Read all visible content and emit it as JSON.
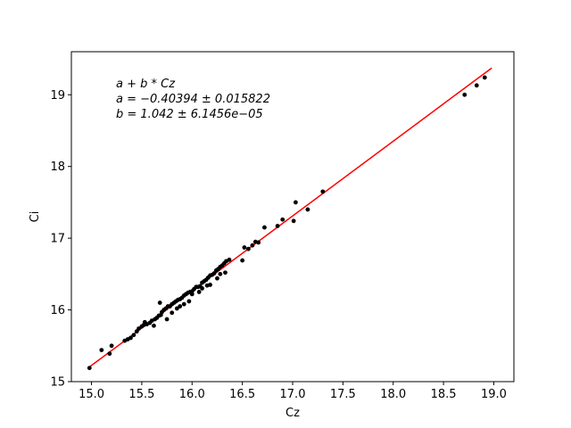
{
  "chart_data": {
    "type": "scatter",
    "xlabel": "Cz",
    "ylabel": "Ci",
    "title": "",
    "xlim": [
      14.8,
      19.2
    ],
    "ylim": [
      15.0,
      19.6
    ],
    "xticks": [
      15.0,
      15.5,
      16.0,
      16.5,
      17.0,
      17.5,
      18.0,
      18.5,
      19.0
    ],
    "xtick_labels": [
      "15.0",
      "15.5",
      "16.0",
      "16.5",
      "17.0",
      "17.5",
      "18.0",
      "18.5",
      "19.0"
    ],
    "yticks": [
      15,
      16,
      17,
      18,
      19
    ],
    "ytick_labels": [
      "15",
      "16",
      "17",
      "18",
      "19"
    ],
    "grid": false,
    "annotation": {
      "line1": "a + b * Cz",
      "line2": "a = −0.40394 ± 0.015822",
      "line3": "b = 1.042 ± 6.1456e−05"
    },
    "fit": {
      "a": -0.40394,
      "b": 1.042,
      "x_range": [
        14.98,
        18.98
      ],
      "color": "#ff0000"
    },
    "points_color": "#000000",
    "series": [
      {
        "x": [
          14.98,
          15.1,
          15.18,
          15.2,
          15.33,
          15.36,
          15.39,
          15.42,
          15.45,
          15.47,
          15.5,
          15.52,
          15.55,
          15.58,
          15.6,
          15.63,
          15.65,
          15.67,
          15.69,
          15.7,
          15.72,
          15.74,
          15.76,
          15.78,
          15.8,
          15.82,
          15.84,
          15.86,
          15.88,
          15.9,
          15.92,
          15.94,
          15.96,
          15.98,
          16.0,
          16.02,
          16.04,
          16.06,
          16.08,
          16.1,
          16.12,
          16.14,
          16.16,
          16.18,
          16.2,
          16.22,
          16.24,
          16.26,
          16.28,
          16.3,
          16.32,
          16.34,
          16.37,
          16.5,
          16.52,
          16.56,
          16.6,
          16.63,
          16.66,
          16.72,
          16.85,
          16.9,
          17.01,
          17.03,
          17.15,
          17.3,
          18.71,
          18.83,
          18.91,
          15.68,
          15.75,
          15.85,
          15.92,
          16.0,
          16.1,
          16.18,
          16.28,
          16.33,
          15.97,
          16.07,
          15.53,
          15.62,
          15.8,
          15.88,
          16.15,
          16.25
        ],
        "y": [
          15.19,
          15.44,
          15.39,
          15.5,
          15.57,
          15.59,
          15.61,
          15.65,
          15.7,
          15.74,
          15.77,
          15.79,
          15.8,
          15.82,
          15.85,
          15.87,
          15.89,
          15.92,
          15.93,
          15.97,
          16.0,
          16.02,
          16.05,
          16.05,
          16.08,
          16.1,
          16.12,
          16.14,
          16.15,
          16.17,
          16.2,
          16.22,
          16.24,
          16.25,
          16.26,
          16.29,
          16.32,
          16.32,
          16.33,
          16.38,
          16.4,
          16.42,
          16.45,
          16.48,
          16.49,
          16.51,
          16.55,
          16.57,
          16.6,
          16.62,
          16.65,
          16.68,
          16.7,
          16.69,
          16.87,
          16.85,
          16.9,
          16.95,
          16.94,
          17.15,
          17.17,
          17.26,
          17.24,
          17.5,
          17.4,
          17.65,
          19.0,
          19.13,
          19.24,
          16.1,
          15.87,
          16.02,
          16.08,
          16.22,
          16.3,
          16.35,
          16.5,
          16.52,
          16.12,
          16.25,
          15.83,
          15.78,
          15.96,
          16.05,
          16.34,
          16.44
        ]
      }
    ]
  }
}
